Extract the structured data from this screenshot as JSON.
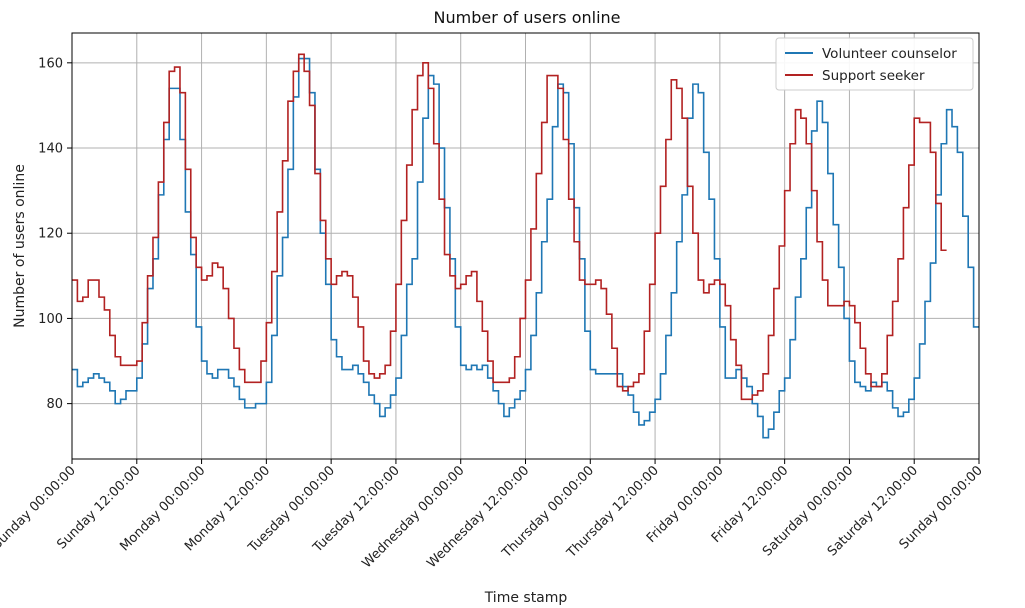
{
  "chart_data": {
    "type": "line",
    "step": true,
    "title": "Number of users online",
    "xlabel": "Time stamp",
    "ylabel": "Number of users online",
    "x_unit": "hours since Sunday 00:00:00",
    "xlim": [
      0,
      168
    ],
    "ylim": [
      67,
      167
    ],
    "x_ticks": [
      {
        "hour": 0,
        "label": "Sunday 00:00:00"
      },
      {
        "hour": 12,
        "label": "Sunday 12:00:00"
      },
      {
        "hour": 24,
        "label": "Monday 00:00:00"
      },
      {
        "hour": 36,
        "label": "Monday 12:00:00"
      },
      {
        "hour": 48,
        "label": "Tuesday 00:00:00"
      },
      {
        "hour": 60,
        "label": "Tuesday 12:00:00"
      },
      {
        "hour": 72,
        "label": "Wednesday 00:00:00"
      },
      {
        "hour": 84,
        "label": "Wednesday 12:00:00"
      },
      {
        "hour": 96,
        "label": "Thursday 00:00:00"
      },
      {
        "hour": 108,
        "label": "Thursday 12:00:00"
      },
      {
        "hour": 120,
        "label": "Friday 00:00:00"
      },
      {
        "hour": 132,
        "label": "Friday 12:00:00"
      },
      {
        "hour": 144,
        "label": "Saturday 00:00:00"
      },
      {
        "hour": 156,
        "label": "Saturday 12:00:00"
      },
      {
        "hour": 168,
        "label": "Sunday 00:00:00"
      }
    ],
    "y_ticks": [
      80,
      100,
      120,
      140,
      160
    ],
    "grid": true,
    "legend_position": "top-right",
    "series": [
      {
        "name": "Volunteer counselor",
        "color": "#1f77b4",
        "values": [
          88,
          84,
          85,
          86,
          87,
          86,
          85,
          83,
          80,
          81,
          83,
          83,
          86,
          94,
          107,
          114,
          129,
          142,
          154,
          154,
          142,
          125,
          115,
          98,
          90,
          87,
          86,
          88,
          88,
          86,
          84,
          81,
          79,
          79,
          80,
          80,
          85,
          96,
          110,
          119,
          135,
          152,
          161,
          161,
          153,
          135,
          120,
          108,
          95,
          91,
          88,
          88,
          89,
          87,
          85,
          82,
          80,
          77,
          79,
          82,
          86,
          96,
          108,
          114,
          132,
          147,
          157,
          155,
          140,
          126,
          114,
          98,
          89,
          88,
          89,
          88,
          89,
          86,
          83,
          80,
          77,
          79,
          81,
          83,
          88,
          96,
          106,
          118,
          128,
          145,
          155,
          153,
          141,
          126,
          114,
          97,
          88,
          87,
          87,
          87,
          87,
          87,
          84,
          82,
          78,
          75,
          76,
          78,
          81,
          87,
          96,
          106,
          118,
          129,
          147,
          155,
          153,
          139,
          128,
          114,
          98,
          86,
          86,
          88,
          86,
          84,
          80,
          77,
          72,
          74,
          78,
          83,
          86,
          95,
          105,
          114,
          126,
          144,
          151,
          146,
          134,
          122,
          112,
          100,
          90,
          85,
          84,
          83,
          85,
          84,
          85,
          83,
          79,
          77,
          78,
          81,
          86,
          94,
          104,
          113,
          129,
          141,
          149,
          145,
          139,
          124,
          112,
          98
        ]
      },
      {
        "name": "Support seeker",
        "color": "#b22222",
        "values": [
          109,
          104,
          105,
          109,
          109,
          105,
          102,
          96,
          91,
          89,
          89,
          89,
          90,
          99,
          110,
          119,
          132,
          146,
          158,
          159,
          153,
          135,
          119,
          112,
          109,
          110,
          113,
          112,
          107,
          100,
          93,
          88,
          85,
          85,
          85,
          90,
          99,
          111,
          125,
          137,
          151,
          158,
          162,
          158,
          150,
          134,
          123,
          114,
          108,
          110,
          111,
          110,
          105,
          98,
          90,
          87,
          86,
          87,
          89,
          97,
          108,
          123,
          136,
          149,
          157,
          160,
          154,
          141,
          128,
          115,
          110,
          107,
          108,
          110,
          111,
          104,
          97,
          90,
          85,
          85,
          85,
          86,
          91,
          100,
          109,
          121,
          134,
          146,
          157,
          157,
          154,
          142,
          128,
          118,
          109,
          108,
          108,
          109,
          107,
          101,
          93,
          84,
          83,
          84,
          85,
          87,
          97,
          108,
          120,
          131,
          142,
          156,
          154,
          147,
          131,
          120,
          109,
          106,
          108,
          109,
          108,
          103,
          95,
          89,
          81,
          81,
          82,
          83,
          87,
          96,
          107,
          117,
          130,
          141,
          149,
          147,
          141,
          130,
          118,
          109,
          103,
          103,
          103,
          104,
          103,
          99,
          93,
          87,
          84,
          84,
          87,
          96,
          104,
          114,
          126,
          136,
          147,
          146,
          146,
          139,
          127,
          116
        ]
      }
    ]
  }
}
